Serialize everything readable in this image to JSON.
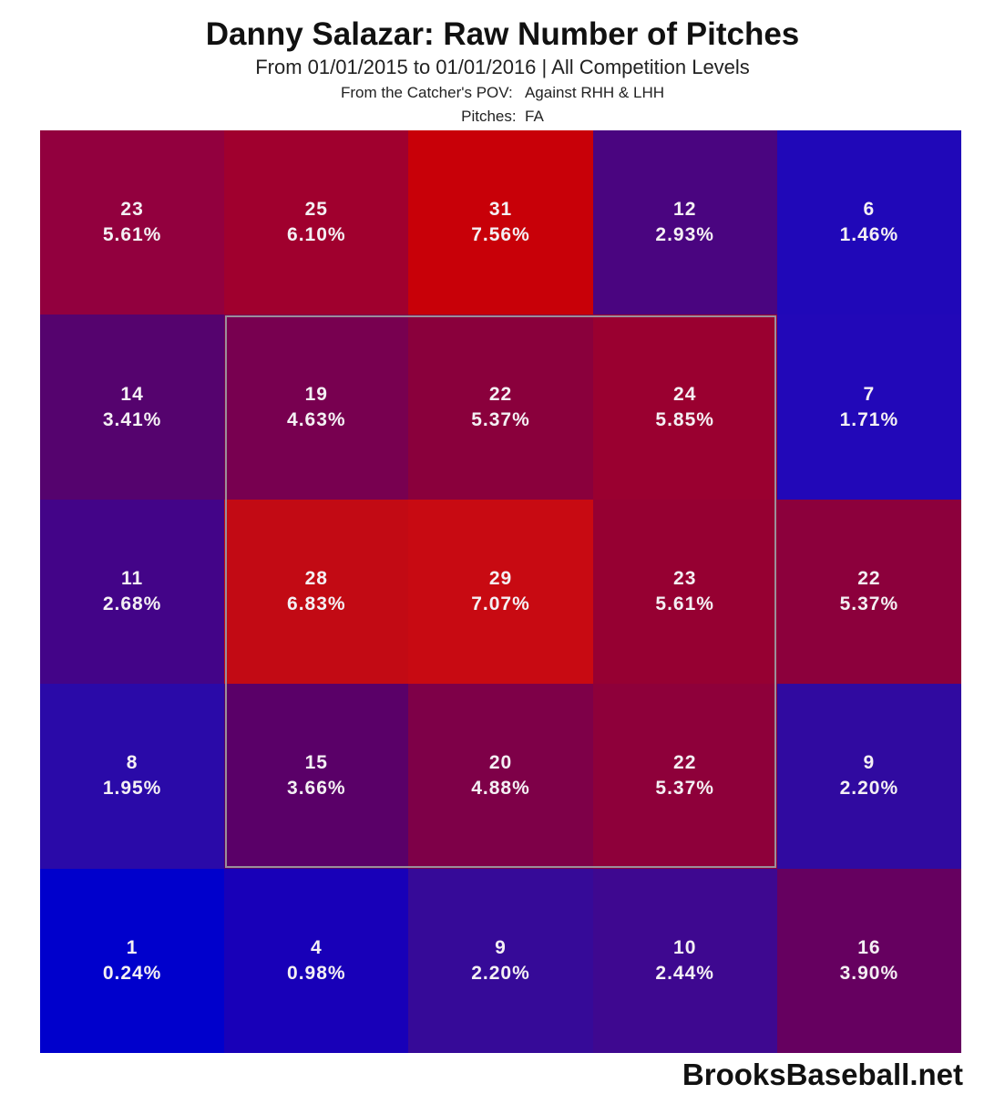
{
  "chart_data": {
    "type": "heatmap",
    "title": "Danny Salazar: Raw Number of Pitches",
    "subtitle": "From 01/01/2015 to 01/01/2016 | All Competition Levels",
    "subtitle2": "From the Catcher's POV:   Against RHH & LHH",
    "subtitle3": "Pitches:  FA",
    "xlabel": "",
    "ylabel": "",
    "grid_rows": 5,
    "grid_cols": 5,
    "strike_zone": "inner 3x3 (rows 2-4, cols 2-4)",
    "values": [
      [
        23,
        25,
        31,
        12,
        6
      ],
      [
        14,
        19,
        22,
        24,
        7
      ],
      [
        11,
        28,
        29,
        23,
        22
      ],
      [
        8,
        15,
        20,
        22,
        9
      ],
      [
        1,
        4,
        9,
        10,
        16
      ]
    ],
    "percentages": [
      [
        "5.61%",
        "6.10%",
        "7.56%",
        "2.93%",
        "1.46%"
      ],
      [
        "3.41%",
        "4.63%",
        "5.37%",
        "5.85%",
        "1.71%"
      ],
      [
        "2.68%",
        "6.83%",
        "7.07%",
        "5.61%",
        "5.37%"
      ],
      [
        "1.95%",
        "3.66%",
        "4.88%",
        "5.37%",
        "2.20%"
      ],
      [
        "0.24%",
        "0.98%",
        "2.20%",
        "2.44%",
        "3.90%"
      ]
    ],
    "colors": [
      [
        "#92003e",
        "#a0002e",
        "#c80008",
        "#4a0580",
        "#2008b8"
      ],
      [
        "#55036e",
        "#780050",
        "#8a003c",
        "#9a0030",
        "#2208b8"
      ],
      [
        "#430488",
        "#c20a14",
        "#c80a12",
        "#960032",
        "#8c003c"
      ],
      [
        "#2a0aa8",
        "#5a0068",
        "#7e0048",
        "#8e003a",
        "#300aa0"
      ],
      [
        "#0000cc",
        "#1800b8",
        "#360a98",
        "#3e0890",
        "#660060"
      ]
    ],
    "color_scale": {
      "low": "#0000cc",
      "high": "#cc0000"
    }
  },
  "footer": {
    "watermark": "BrooksBaseball.net"
  }
}
